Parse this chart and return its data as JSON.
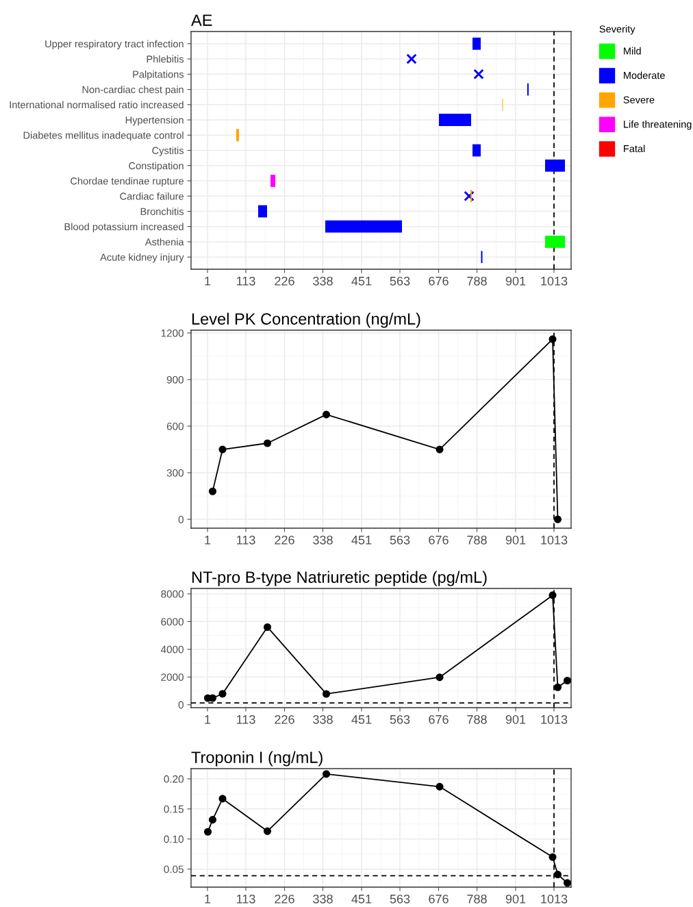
{
  "chart_data": [
    {
      "type": "bar",
      "title": "AE",
      "orientation": "horizontal",
      "categories": [
        "Upper respiratory tract infection",
        "Phlebitis",
        "Palpitations",
        "Non-cardiac chest pain",
        "International normalised ratio increased",
        "Hypertension",
        "Diabetes mellitus inadequate control",
        "Cystitis",
        "Constipation",
        "Chordae tendinae rupture",
        "Cardiac failure",
        "Bronchitis",
        "Blood potassium increased",
        "Asthenia",
        "Acute kidney injury"
      ],
      "xlim": [
        -47,
        1063
      ],
      "xticks": [
        1,
        113,
        226,
        338,
        451,
        563,
        676,
        788,
        901,
        1013
      ],
      "grid": true,
      "legend": "right",
      "legend_title": "Severity",
      "ref_lines": [
        {
          "axis": "x",
          "value": 1013,
          "line_style": "dashed",
          "color": "#000000"
        }
      ],
      "series": [
        {
          "name": "Mild",
          "color": "#00ff00",
          "values": [
            null,
            null,
            null,
            null,
            null,
            null,
            null,
            null,
            null,
            null,
            null,
            null,
            null,
            58,
            null
          ],
          "base": [
            null,
            null,
            null,
            null,
            null,
            null,
            null,
            null,
            null,
            null,
            null,
            null,
            null,
            987,
            null
          ]
        },
        {
          "name": "Moderate",
          "color": "#0000ff",
          "values": [
            24,
            null,
            null,
            4,
            null,
            94,
            null,
            24,
            58,
            null,
            null,
            26,
            224,
            null,
            4
          ],
          "base": [
            775,
            null,
            null,
            935,
            null,
            677,
            null,
            775,
            987,
            null,
            null,
            149,
            345,
            null,
            800
          ]
        },
        {
          "name": "Severe",
          "color": "#ffa500",
          "values": [
            null,
            null,
            null,
            null,
            2,
            null,
            8,
            null,
            null,
            null,
            4,
            null,
            null,
            null,
            null
          ],
          "base": [
            null,
            null,
            null,
            null,
            862,
            null,
            85,
            null,
            null,
            null,
            769,
            null,
            null,
            null,
            null
          ]
        },
        {
          "name": "Life threatening",
          "color": "#ff00ff",
          "values": [
            null,
            null,
            null,
            null,
            null,
            null,
            null,
            null,
            null,
            14,
            null,
            null,
            null,
            null,
            null
          ],
          "base": [
            null,
            null,
            null,
            null,
            null,
            null,
            null,
            null,
            null,
            185,
            null,
            null,
            null,
            null,
            null
          ]
        },
        {
          "name": "Fatal",
          "color": "#ff0000",
          "values": [
            null,
            null,
            null,
            null,
            null,
            null,
            null,
            null,
            null,
            null,
            null,
            null,
            null,
            null,
            null
          ],
          "base": [
            null,
            null,
            null,
            null,
            null,
            null,
            null,
            null,
            null,
            null,
            null,
            null,
            null,
            null,
            null
          ]
        },
        {
          "type": "scatter",
          "color": "#0000ff",
          "marker": "cross",
          "values": [
            null,
            597,
            793,
            null,
            null,
            null,
            null,
            null,
            null,
            null,
            765,
            null,
            null,
            null,
            null
          ]
        }
      ]
    },
    {
      "type": "line",
      "title": "Level PK Concentration (ng/mL)",
      "x": [
        16,
        45,
        176,
        348,
        679,
        1009,
        1024
      ],
      "xlim": [
        -47,
        1063
      ],
      "xticks": [
        1,
        113,
        226,
        338,
        451,
        563,
        676,
        788,
        901,
        1013
      ],
      "ylim": [
        -57,
        1218
      ],
      "yticks": [
        0,
        300,
        600,
        900,
        1200
      ],
      "grid": true,
      "marker": "circle",
      "line_style": "solid",
      "ref_lines": [
        {
          "axis": "x",
          "value": 1013,
          "line_style": "dashed",
          "color": "#000000"
        }
      ],
      "series": [
        {
          "color": "#000000",
          "values": [
            180,
            450,
            490,
            675,
            450,
            1160,
            0
          ]
        }
      ]
    },
    {
      "type": "line",
      "title": "NT-pro B-type Natriuretic peptide (pg/mL)",
      "x": [
        2,
        16,
        45,
        176,
        348,
        679,
        1009,
        1024,
        1052
      ],
      "xlim": [
        -47,
        1063
      ],
      "xticks": [
        1,
        113,
        226,
        338,
        451,
        563,
        676,
        788,
        901,
        1013
      ],
      "ylim": [
        -210,
        8390
      ],
      "yticks": [
        0,
        2000,
        4000,
        6000,
        8000
      ],
      "grid": true,
      "marker": "circle",
      "line_style": "solid",
      "ref_lines": [
        {
          "axis": "x",
          "value": 1013,
          "line_style": "dashed",
          "color": "#000000"
        },
        {
          "axis": "y",
          "value": 125,
          "line_style": "dashed",
          "color": "#000000"
        }
      ],
      "series": [
        {
          "color": "#000000",
          "values": [
            480,
            480,
            790,
            5600,
            780,
            1980,
            7900,
            1260,
            1740
          ]
        }
      ]
    },
    {
      "type": "line",
      "title": "Troponin I (ng/mL)",
      "x": [
        2,
        16,
        45,
        176,
        348,
        679,
        1009,
        1024,
        1052
      ],
      "xlim": [
        -47,
        1063
      ],
      "xticks": [
        1,
        113,
        226,
        338,
        451,
        563,
        676,
        788,
        901,
        1013
      ],
      "ylim": [
        0.02,
        0.217
      ],
      "yticks": [
        {
          "value": 0.05,
          "label": "0.05"
        },
        {
          "value": 0.1,
          "label": "0.10"
        },
        {
          "value": 0.15,
          "label": "0.15"
        },
        {
          "value": 0.2,
          "label": "0.20"
        }
      ],
      "grid": true,
      "marker": "circle",
      "line_style": "solid",
      "ref_lines": [
        {
          "axis": "x",
          "value": 1013,
          "line_style": "dashed",
          "color": "#000000"
        },
        {
          "axis": "y",
          "value": 0.039,
          "line_style": "dashed",
          "color": "#000000"
        }
      ],
      "series": [
        {
          "color": "#000000",
          "values": [
            0.112,
            0.132,
            0.167,
            0.113,
            0.208,
            0.187,
            0.07,
            0.041,
            0.027
          ]
        }
      ]
    }
  ]
}
